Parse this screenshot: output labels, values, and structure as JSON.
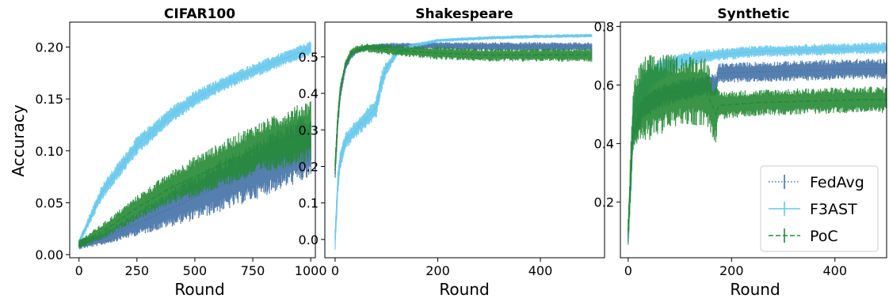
{
  "colors": {
    "fedavg": "#4271a6",
    "f3ast": "#66c8ec",
    "poc": "#258a35"
  },
  "chart_data": [
    {
      "type": "line",
      "title": "CIFAR100",
      "xlabel": "Round",
      "ylabel": "Accuracy",
      "xlim": [
        -40,
        1020
      ],
      "ylim": [
        -0.003,
        0.224
      ],
      "xticks": [
        0,
        250,
        500,
        750,
        1000
      ],
      "xtick_labels": [
        "0",
        "250",
        "500",
        "750",
        "1000"
      ],
      "yticks": [
        0.0,
        0.05,
        0.1,
        0.15,
        0.2
      ],
      "ytick_labels": [
        "0.00",
        "0.05",
        "0.10",
        "0.15",
        "0.20"
      ],
      "series": [
        {
          "name": "FedAvg",
          "style": "dotted",
          "x": [
            0,
            100,
            250,
            400,
            500,
            600,
            750,
            900,
            1000
          ],
          "y": [
            0.01,
            0.015,
            0.03,
            0.045,
            0.055,
            0.065,
            0.08,
            0.095,
            0.105
          ],
          "band": [
            0.005,
            0.006,
            0.012,
            0.018,
            0.022,
            0.025,
            0.028,
            0.03,
            0.032
          ]
        },
        {
          "name": "F3AST",
          "style": "solid",
          "x": [
            0,
            100,
            250,
            400,
            500,
            600,
            750,
            900,
            1000
          ],
          "y": [
            0.012,
            0.06,
            0.105,
            0.135,
            0.15,
            0.162,
            0.177,
            0.19,
            0.199
          ],
          "band": [
            0.003,
            0.008,
            0.009,
            0.008,
            0.008,
            0.007,
            0.007,
            0.007,
            0.007
          ]
        },
        {
          "name": "PoC",
          "style": "dashed",
          "x": [
            0,
            100,
            250,
            400,
            500,
            600,
            750,
            900,
            1000
          ],
          "y": [
            0.01,
            0.022,
            0.045,
            0.065,
            0.075,
            0.085,
            0.1,
            0.112,
            0.12
          ],
          "band": [
            0.004,
            0.008,
            0.012,
            0.016,
            0.02,
            0.022,
            0.025,
            0.028,
            0.03
          ]
        }
      ]
    },
    {
      "type": "line",
      "title": "Shakespeare",
      "xlabel": "Round",
      "ylabel": "",
      "xlim": [
        -20,
        525
      ],
      "ylim": [
        -0.05,
        0.595
      ],
      "xticks": [
        0,
        200,
        400
      ],
      "xtick_labels": [
        "0",
        "200",
        "400"
      ],
      "yticks": [
        0.0,
        0.1,
        0.2,
        0.3,
        0.4,
        0.5
      ],
      "ytick_labels": [
        "0.0",
        "0.1",
        "0.2",
        "0.3",
        "0.4",
        "0.5"
      ],
      "series": [
        {
          "name": "FedAvg",
          "style": "dotted",
          "x": [
            0,
            5,
            10,
            20,
            30,
            40,
            60,
            100,
            200,
            300,
            400,
            500
          ],
          "y": [
            0.18,
            0.32,
            0.4,
            0.47,
            0.5,
            0.515,
            0.525,
            0.53,
            0.53,
            0.528,
            0.528,
            0.528
          ],
          "band": [
            0.02,
            0.02,
            0.015,
            0.01,
            0.008,
            0.008,
            0.008,
            0.008,
            0.01,
            0.012,
            0.012,
            0.012
          ]
        },
        {
          "name": "F3AST",
          "style": "solid",
          "x": [
            0,
            5,
            10,
            20,
            40,
            60,
            80,
            90,
            100,
            120,
            150,
            200,
            300,
            400,
            500
          ],
          "y": [
            0.0,
            0.15,
            0.22,
            0.27,
            0.3,
            0.33,
            0.36,
            0.43,
            0.47,
            0.51,
            0.53,
            0.545,
            0.552,
            0.556,
            0.558
          ],
          "band": [
            0.03,
            0.03,
            0.03,
            0.025,
            0.025,
            0.025,
            0.03,
            0.03,
            0.02,
            0.01,
            0.006,
            0.005,
            0.005,
            0.005,
            0.005
          ]
        },
        {
          "name": "PoC",
          "style": "dashed",
          "x": [
            0,
            5,
            10,
            20,
            30,
            40,
            60,
            100,
            200,
            300,
            400,
            500
          ],
          "y": [
            0.2,
            0.33,
            0.41,
            0.48,
            0.51,
            0.52,
            0.525,
            0.52,
            0.51,
            0.505,
            0.505,
            0.505
          ],
          "band": [
            0.02,
            0.02,
            0.015,
            0.01,
            0.01,
            0.01,
            0.012,
            0.015,
            0.018,
            0.018,
            0.018,
            0.02
          ]
        }
      ]
    },
    {
      "type": "line",
      "title": "Synthetic",
      "xlabel": "Round",
      "ylabel": "",
      "xlim": [
        -15,
        500
      ],
      "ylim": [
        0.01,
        0.815
      ],
      "xticks": [
        0,
        200,
        400
      ],
      "xtick_labels": [
        "0",
        "200",
        "400"
      ],
      "yticks": [
        0.2,
        0.4,
        0.6,
        0.8
      ],
      "ytick_labels": [
        "0.2",
        "0.4",
        "0.6",
        "0.8"
      ],
      "series": [
        {
          "name": "FedAvg",
          "style": "dotted",
          "x": [
            0,
            10,
            30,
            60,
            100,
            150,
            170,
            175,
            250,
            350,
            450,
            500
          ],
          "y": [
            0.08,
            0.45,
            0.53,
            0.56,
            0.58,
            0.6,
            0.6,
            0.64,
            0.645,
            0.65,
            0.655,
            0.655
          ],
          "band": [
            0.04,
            0.06,
            0.05,
            0.04,
            0.04,
            0.035,
            0.04,
            0.035,
            0.035,
            0.035,
            0.035,
            0.035
          ]
        },
        {
          "name": "F3AST",
          "style": "solid",
          "x": [
            0,
            10,
            30,
            60,
            100,
            150,
            250,
            350,
            450,
            500
          ],
          "y": [
            0.08,
            0.5,
            0.6,
            0.65,
            0.68,
            0.7,
            0.715,
            0.72,
            0.725,
            0.728
          ],
          "band": [
            0.04,
            0.07,
            0.05,
            0.04,
            0.03,
            0.022,
            0.02,
            0.02,
            0.02,
            0.02
          ]
        },
        {
          "name": "PoC",
          "style": "dashed",
          "x": [
            0,
            10,
            30,
            60,
            100,
            150,
            170,
            175,
            250,
            350,
            450,
            500
          ],
          "y": [
            0.1,
            0.5,
            0.55,
            0.57,
            0.58,
            0.58,
            0.5,
            0.53,
            0.54,
            0.545,
            0.55,
            0.55
          ],
          "band": [
            0.05,
            0.12,
            0.15,
            0.14,
            0.12,
            0.12,
            0.1,
            0.05,
            0.045,
            0.045,
            0.045,
            0.045
          ]
        }
      ],
      "legend": {
        "placement": "lower-right",
        "entries": [
          "FedAvg",
          "F3AST",
          "PoC"
        ]
      }
    }
  ]
}
